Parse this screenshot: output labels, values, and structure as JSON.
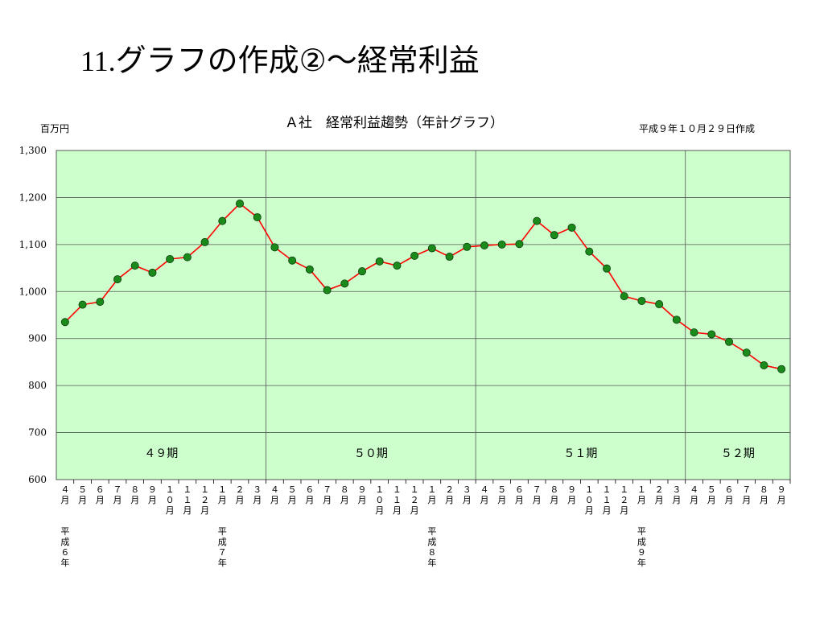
{
  "slide": {
    "title_number": "11.",
    "title_text": "グラフの作成②～経常利益"
  },
  "chart_data": {
    "type": "line",
    "title": "Ａ社　経常利益趨勢（年計グラフ）",
    "unit_label": "百万円",
    "date_note": "平成９年１０月２９日作成",
    "ylim": [
      600,
      1300
    ],
    "yticks": [
      600,
      700,
      800,
      900,
      1000,
      1100,
      1200,
      1300
    ],
    "ytick_labels": [
      "600",
      "700",
      "800",
      "900",
      "1,000",
      "1,100",
      "1,200",
      "1,300"
    ],
    "grid": true,
    "x": [
      "４月",
      "５月",
      "６月",
      "７月",
      "８月",
      "９月",
      "１０月",
      "１１月",
      "１２月",
      "１月",
      "２月",
      "３月",
      "４月",
      "５月",
      "６月",
      "７月",
      "８月",
      "９月",
      "１０月",
      "１１月",
      "１２月",
      "１月",
      "２月",
      "３月",
      "４月",
      "５月",
      "６月",
      "７月",
      "８月",
      "９月",
      "１０月",
      "１１月",
      "１２月",
      "１月",
      "２月",
      "３月",
      "４月",
      "５月",
      "６月",
      "７月",
      "８月",
      "９月"
    ],
    "year_labels": [
      {
        "index": 0,
        "label": "平成６年"
      },
      {
        "index": 9,
        "label": "平成７年"
      },
      {
        "index": 21,
        "label": "平成８年"
      },
      {
        "index": 33,
        "label": "平成９年"
      }
    ],
    "periods": [
      {
        "label": "４９期",
        "start": 0,
        "end": 11
      },
      {
        "label": "５０期",
        "start": 12,
        "end": 23
      },
      {
        "label": "５１期",
        "start": 24,
        "end": 35
      },
      {
        "label": "５２期",
        "start": 36,
        "end": 41
      }
    ],
    "series": [
      {
        "values": [
          935,
          972,
          978,
          1026,
          1055,
          1040,
          1069,
          1073,
          1105,
          1150,
          1187,
          1158,
          1094,
          1066,
          1047,
          1003,
          1017,
          1043,
          1064,
          1055,
          1076,
          1092,
          1074,
          1095,
          1098,
          1100,
          1101,
          1150,
          1120,
          1136,
          1085,
          1049,
          990,
          980,
          973,
          940,
          913,
          909,
          893,
          870,
          843,
          835
        ],
        "line_color": "#ff0000",
        "marker_color": "#1a8a1a"
      }
    ],
    "colors": {
      "plot_background": "#ccffcc",
      "grid": "#555555"
    }
  }
}
